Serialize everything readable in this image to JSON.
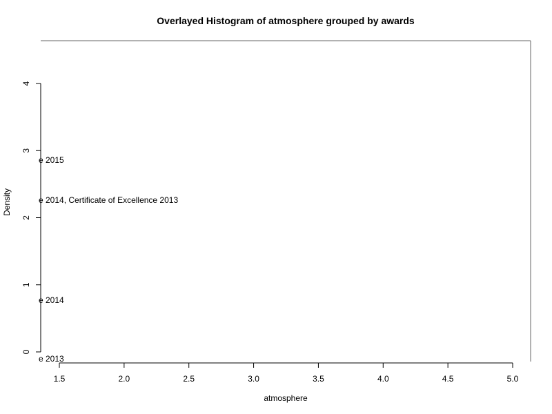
{
  "chart_data": {
    "type": "bar",
    "title": "Overlayed Histogram of atmosphere grouped by awards",
    "xlabel": "atmosphere",
    "ylabel": "Density",
    "xlim": [
      1.5,
      5.0
    ],
    "ylim": [
      0,
      4
    ],
    "x_ticks": [
      "1.5",
      "2.0",
      "2.5",
      "3.0",
      "3.5",
      "4.0",
      "4.5",
      "5.0"
    ],
    "y_ticks": [
      "0",
      "1",
      "2",
      "3",
      "4"
    ],
    "grid": false,
    "legend_placement": "left",
    "legend_entries": [
      "e 2015",
      "e 2014, Certificate of Excellence 2013",
      "e 2014",
      "e 2013"
    ],
    "series": []
  }
}
